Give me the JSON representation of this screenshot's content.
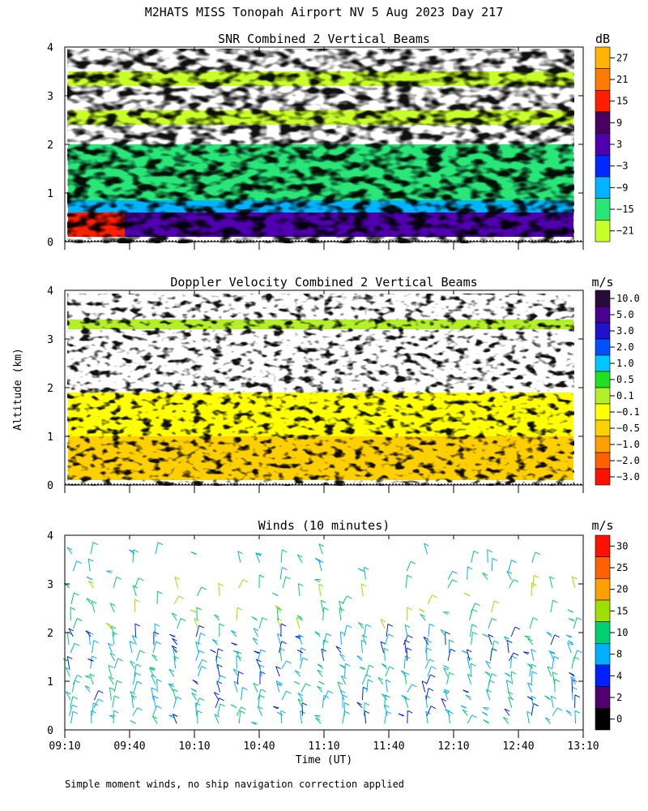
{
  "title": "M2HATS MISS Tonopah Airport NV   5 Aug 2023 Day 217",
  "footer": "Simple moment winds, no ship navigation correction applied",
  "shared_ylabel": "Altitude (km)",
  "chart_data": [
    {
      "type": "heatmap",
      "title": "SNR Combined 2 Vertical Beams",
      "ylim": [
        0,
        4
      ],
      "yticks": [
        "0",
        "1",
        "2",
        "3",
        "4"
      ],
      "xlim": [
        "09:10",
        "13:10"
      ],
      "colorbar": {
        "unit": "dB",
        "labels": [
          "27",
          "21",
          "15",
          "9",
          "3",
          "−3",
          "−9",
          "−15",
          "−21"
        ],
        "colors": [
          "#ffb400",
          "#ff7a00",
          "#ff1e00",
          "#4a0060",
          "#5000b0",
          "#0028ff",
          "#00b4ff",
          "#28e678",
          "#c8ff28"
        ]
      },
      "layers": [
        {
          "alt_range_km": [
            0.1,
            0.6
          ],
          "snr_db": 5,
          "note_hi": 17
        },
        {
          "alt_range_km": [
            0.6,
            0.85
          ],
          "snr_db": -8
        },
        {
          "alt_range_km": [
            0.85,
            1.6
          ],
          "snr_db": -17
        },
        {
          "alt_range_km": [
            1.6,
            2.0
          ],
          "snr_db": -14
        },
        {
          "alt_range_km": [
            2.4,
            2.7
          ],
          "snr_db": -20
        },
        {
          "alt_range_km": [
            3.2,
            3.5
          ],
          "snr_db": -20
        }
      ]
    },
    {
      "type": "heatmap",
      "title": "Doppler Velocity Combined 2 Vertical Beams",
      "ylim": [
        0,
        4
      ],
      "yticks": [
        "0",
        "1",
        "2",
        "3",
        "4"
      ],
      "xlim": [
        "09:10",
        "13:10"
      ],
      "colorbar": {
        "unit": "m/s",
        "labels": [
          "10.0",
          "5.0",
          "3.0",
          "2.0",
          "1.0",
          "0.5",
          "0.1",
          "−0.1",
          "−0.5",
          "−1.0",
          "−2.0",
          "−3.0"
        ],
        "colors": [
          "#2a0a3a",
          "#4a0090",
          "#2010d0",
          "#0050ff",
          "#00c8ff",
          "#20e020",
          "#b4f028",
          "#ffff00",
          "#ffd000",
          "#ffa000",
          "#ff6000",
          "#ff1000"
        ]
      },
      "layers": [
        {
          "alt_range_km": [
            0.1,
            1.0
          ],
          "velocity_ms": -0.4
        },
        {
          "alt_range_km": [
            1.0,
            1.9
          ],
          "velocity_ms": -0.2
        },
        {
          "alt_range_km": [
            3.2,
            3.4
          ],
          "velocity_ms": 0.2
        }
      ]
    },
    {
      "type": "scatter",
      "title": "Winds (10 minutes)",
      "ylim": [
        0,
        4
      ],
      "yticks": [
        "0",
        "1",
        "2",
        "3",
        "4"
      ],
      "x_ticks": [
        "09:10",
        "09:40",
        "10:10",
        "10:40",
        "11:10",
        "11:40",
        "12:10",
        "12:40",
        "13:10"
      ],
      "xlabel": "Time (UT)",
      "colorbar": {
        "unit": "m/s",
        "labels": [
          "30",
          "25",
          "20",
          "15",
          "10",
          "8",
          "4",
          "2",
          "0"
        ],
        "colors": [
          "#ff1000",
          "#ff6000",
          "#ffa000",
          "#a0e000",
          "#00d070",
          "#00b0ff",
          "#0020ff",
          "#500070",
          "#000000"
        ]
      },
      "wind_layers": [
        {
          "alt_range_km": [
            0.05,
            1.5
          ],
          "speed_ms": 8
        },
        {
          "alt_range_km": [
            1.5,
            2.0
          ],
          "speed_ms": 7
        },
        {
          "alt_range_km": [
            2.0,
            3.0
          ],
          "speed_ms": 12
        },
        {
          "alt_range_km": [
            3.0,
            3.7
          ],
          "speed_ms": 9
        }
      ]
    }
  ]
}
